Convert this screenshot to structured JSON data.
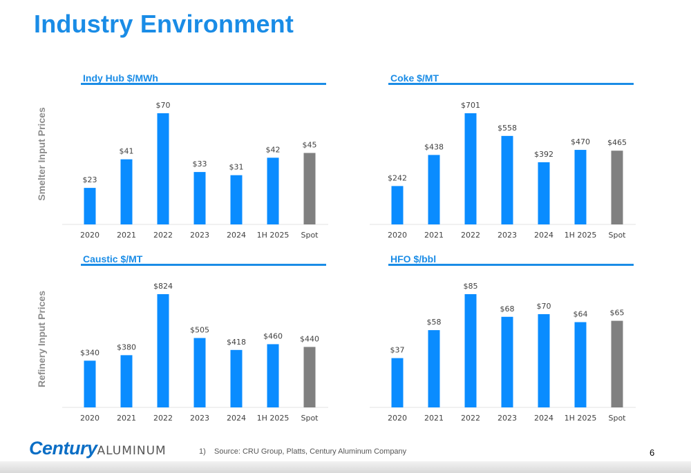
{
  "page": {
    "title": "Industry Environment",
    "side_labels": [
      "Smelter Input Prices",
      "Refinery Input Prices"
    ],
    "logo": {
      "bold": "Century",
      "light": "ALUMINUM"
    },
    "footnote": "1)    Source: CRU Group, Platts, Century Aluminum Company",
    "page_number": "6"
  },
  "colors": {
    "accent": "#1a8ce6",
    "bar": "#0a8cff",
    "spot_bar": "#808080",
    "gray_text": "#8c8c8c"
  },
  "chart_data": [
    {
      "type": "bar",
      "title": "Indy Hub $/MWh",
      "categories": [
        "2020",
        "2021",
        "2022",
        "2023",
        "2024",
        "1H 2025",
        "Spot"
      ],
      "values": [
        23,
        41,
        70,
        33,
        31,
        42,
        45
      ],
      "labels": [
        "$23",
        "$41",
        "$70",
        "$33",
        "$31",
        "$42",
        "$45"
      ],
      "highlight": [
        false,
        false,
        false,
        false,
        false,
        false,
        true
      ],
      "ylim": [
        0,
        70
      ]
    },
    {
      "type": "bar",
      "title": "Coke $/MT",
      "categories": [
        "2020",
        "2021",
        "2022",
        "2023",
        "2024",
        "1H 2025",
        "Spot"
      ],
      "values": [
        242,
        438,
        701,
        558,
        392,
        470,
        465
      ],
      "labels": [
        "$242",
        "$438",
        "$701",
        "$558",
        "$392",
        "$470",
        "$465"
      ],
      "highlight": [
        false,
        false,
        false,
        false,
        false,
        false,
        true
      ],
      "ylim": [
        0,
        701
      ]
    },
    {
      "type": "bar",
      "title": "Caustic $/MT",
      "categories": [
        "2020",
        "2021",
        "2022",
        "2023",
        "2024",
        "1H 2025",
        "Spot"
      ],
      "values": [
        340,
        380,
        824,
        505,
        418,
        460,
        440
      ],
      "labels": [
        "$340",
        "$380",
        "$824",
        "$505",
        "$418",
        "$460",
        "$440"
      ],
      "highlight": [
        false,
        false,
        false,
        false,
        false,
        false,
        true
      ],
      "ylim": [
        0,
        824
      ]
    },
    {
      "type": "bar",
      "title": "HFO $/bbl",
      "categories": [
        "2020",
        "2021",
        "2022",
        "2023",
        "2024",
        "1H 2025",
        "Spot"
      ],
      "values": [
        37,
        58,
        85,
        68,
        70,
        64,
        65
      ],
      "labels": [
        "$37",
        "$58",
        "$85",
        "$68",
        "$70",
        "$64",
        "$65"
      ],
      "highlight": [
        false,
        false,
        false,
        false,
        false,
        false,
        true
      ],
      "ylim": [
        0,
        85
      ]
    }
  ]
}
